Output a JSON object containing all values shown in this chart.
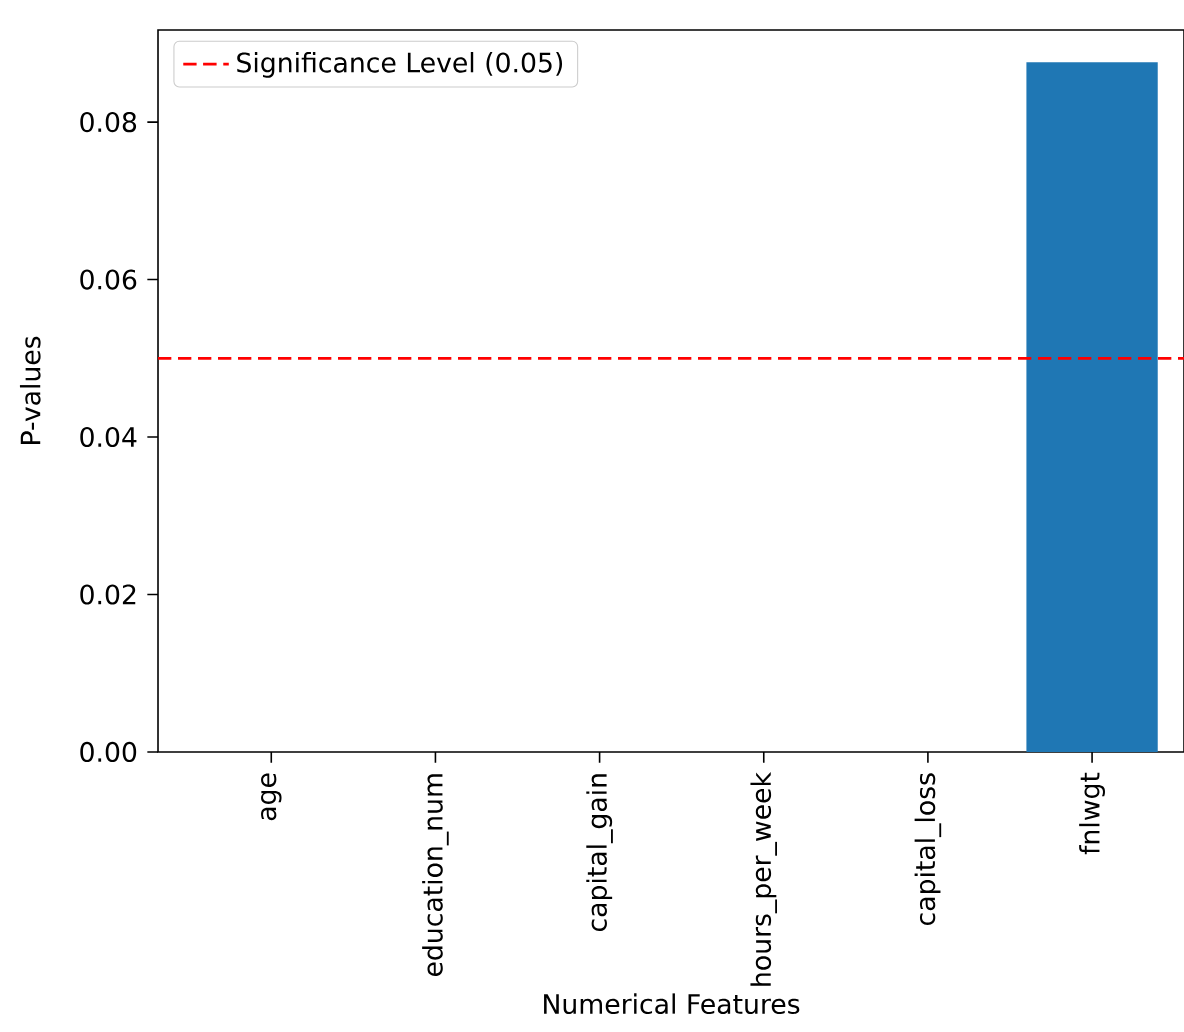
{
  "chart_data": {
    "type": "bar",
    "xlabel": "Numerical Features",
    "ylabel": "P-values",
    "categories": [
      "age",
      "education_num",
      "capital_gain",
      "hours_per_week",
      "capital_loss",
      "fnlwgt"
    ],
    "values": [
      0,
      0,
      0,
      0,
      0,
      0.0876
    ],
    "color": "#1f77b4",
    "ylim": [
      0,
      0.0917
    ],
    "yticks": [
      {
        "value": 0,
        "label": "0.00"
      },
      {
        "value": 0.02,
        "label": "0.02"
      },
      {
        "value": 0.04,
        "label": "0.04"
      },
      {
        "value": 0.06,
        "label": "0.06"
      },
      {
        "value": 0.08,
        "label": "0.08"
      }
    ],
    "ref_lines": [
      {
        "axis": "y",
        "value": 0.05,
        "label": "Significance Level (0.05)",
        "color": "#ff0000",
        "line_style": "dashed"
      }
    ],
    "legend": "top left"
  }
}
